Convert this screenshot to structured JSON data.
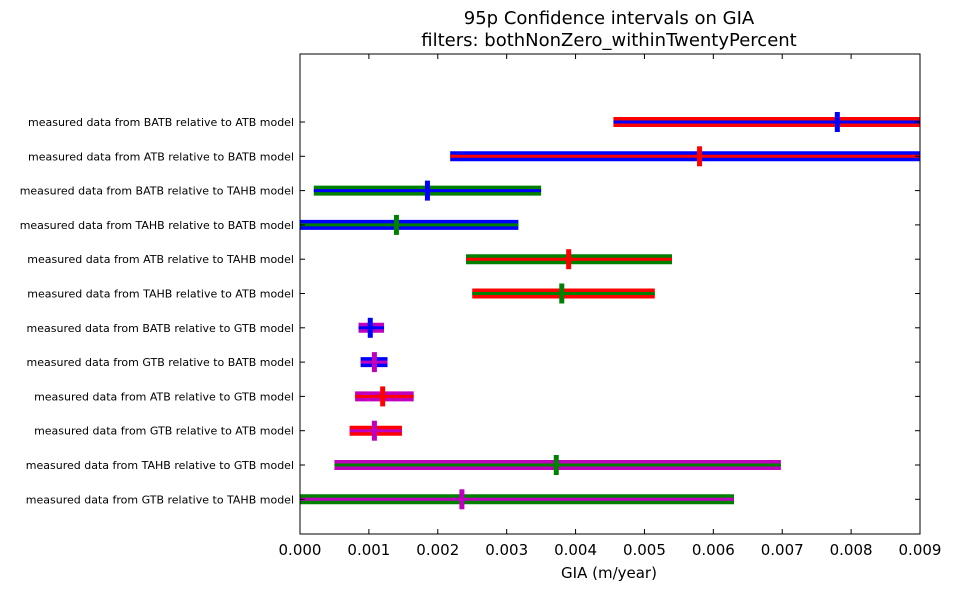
{
  "chart_data": {
    "type": "errorbar-interval",
    "title": "95p Confidence intervals on GIA",
    "subtitle": "filters: bothNonZero_withinTwentyPercent",
    "xlabel": "GIA (m/year)",
    "xlim": [
      0.0,
      0.009
    ],
    "xticks": [
      "0.000",
      "0.001",
      "0.002",
      "0.003",
      "0.004",
      "0.005",
      "0.006",
      "0.007",
      "0.008",
      "0.009"
    ],
    "grid": false,
    "colors": {
      "ATB": "#ff0000",
      "BATB": "#0000ff",
      "TAHB": "#008000",
      "GTB": "#bf00bf"
    },
    "rows": [
      {
        "label": "measured data from BATB relative to ATB model",
        "low": 0.00455,
        "high": 0.009,
        "center": 0.0078,
        "outer_color": "#ff0000",
        "inner_color": "#0000ff",
        "marker_color": "#0000ff"
      },
      {
        "label": "measured data from ATB relative to BATB model",
        "low": 0.00218,
        "high": 0.009,
        "center": 0.0058,
        "outer_color": "#0000ff",
        "inner_color": "#ff0000",
        "marker_color": "#ff0000"
      },
      {
        "label": "measured data from BATB relative to TAHB model",
        "low": 0.0002,
        "high": 0.0035,
        "center": 0.00185,
        "outer_color": "#008000",
        "inner_color": "#0000ff",
        "marker_color": "#0000ff"
      },
      {
        "label": "measured data from TAHB relative to BATB model",
        "low": 0.0,
        "high": 0.00317,
        "center": 0.0014,
        "outer_color": "#0000ff",
        "inner_color": "#008000",
        "marker_color": "#008000"
      },
      {
        "label": "measured data from ATB relative to TAHB model",
        "low": 0.00241,
        "high": 0.0054,
        "center": 0.0039,
        "outer_color": "#008000",
        "inner_color": "#ff0000",
        "marker_color": "#ff0000"
      },
      {
        "label": "measured data from TAHB relative to ATB model",
        "low": 0.0025,
        "high": 0.00515,
        "center": 0.0038,
        "outer_color": "#ff0000",
        "inner_color": "#008000",
        "marker_color": "#008000"
      },
      {
        "label": "measured data from BATB relative to GTB model",
        "low": 0.00085,
        "high": 0.00122,
        "center": 0.00102,
        "outer_color": "#bf00bf",
        "inner_color": "#0000ff",
        "marker_color": "#0000ff"
      },
      {
        "label": "measured data from GTB relative to BATB model",
        "low": 0.00088,
        "high": 0.00127,
        "center": 0.00108,
        "outer_color": "#0000ff",
        "inner_color": "#bf00bf",
        "marker_color": "#bf00bf"
      },
      {
        "label": "measured data from ATB relative to GTB model",
        "low": 0.0008,
        "high": 0.00165,
        "center": 0.0012,
        "outer_color": "#bf00bf",
        "inner_color": "#ff0000",
        "marker_color": "#ff0000"
      },
      {
        "label": "measured data from GTB relative to ATB model",
        "low": 0.00072,
        "high": 0.00148,
        "center": 0.00108,
        "outer_color": "#ff0000",
        "inner_color": "#bf00bf",
        "marker_color": "#bf00bf"
      },
      {
        "label": "measured data from TAHB relative to GTB model",
        "low": 0.0005,
        "high": 0.00698,
        "center": 0.00372,
        "outer_color": "#bf00bf",
        "inner_color": "#008000",
        "marker_color": "#008000"
      },
      {
        "label": "measured data from GTB relative to TAHB model",
        "low": 0.0,
        "high": 0.0063,
        "center": 0.00235,
        "outer_color": "#008000",
        "inner_color": "#bf00bf",
        "marker_color": "#bf00bf"
      }
    ]
  }
}
